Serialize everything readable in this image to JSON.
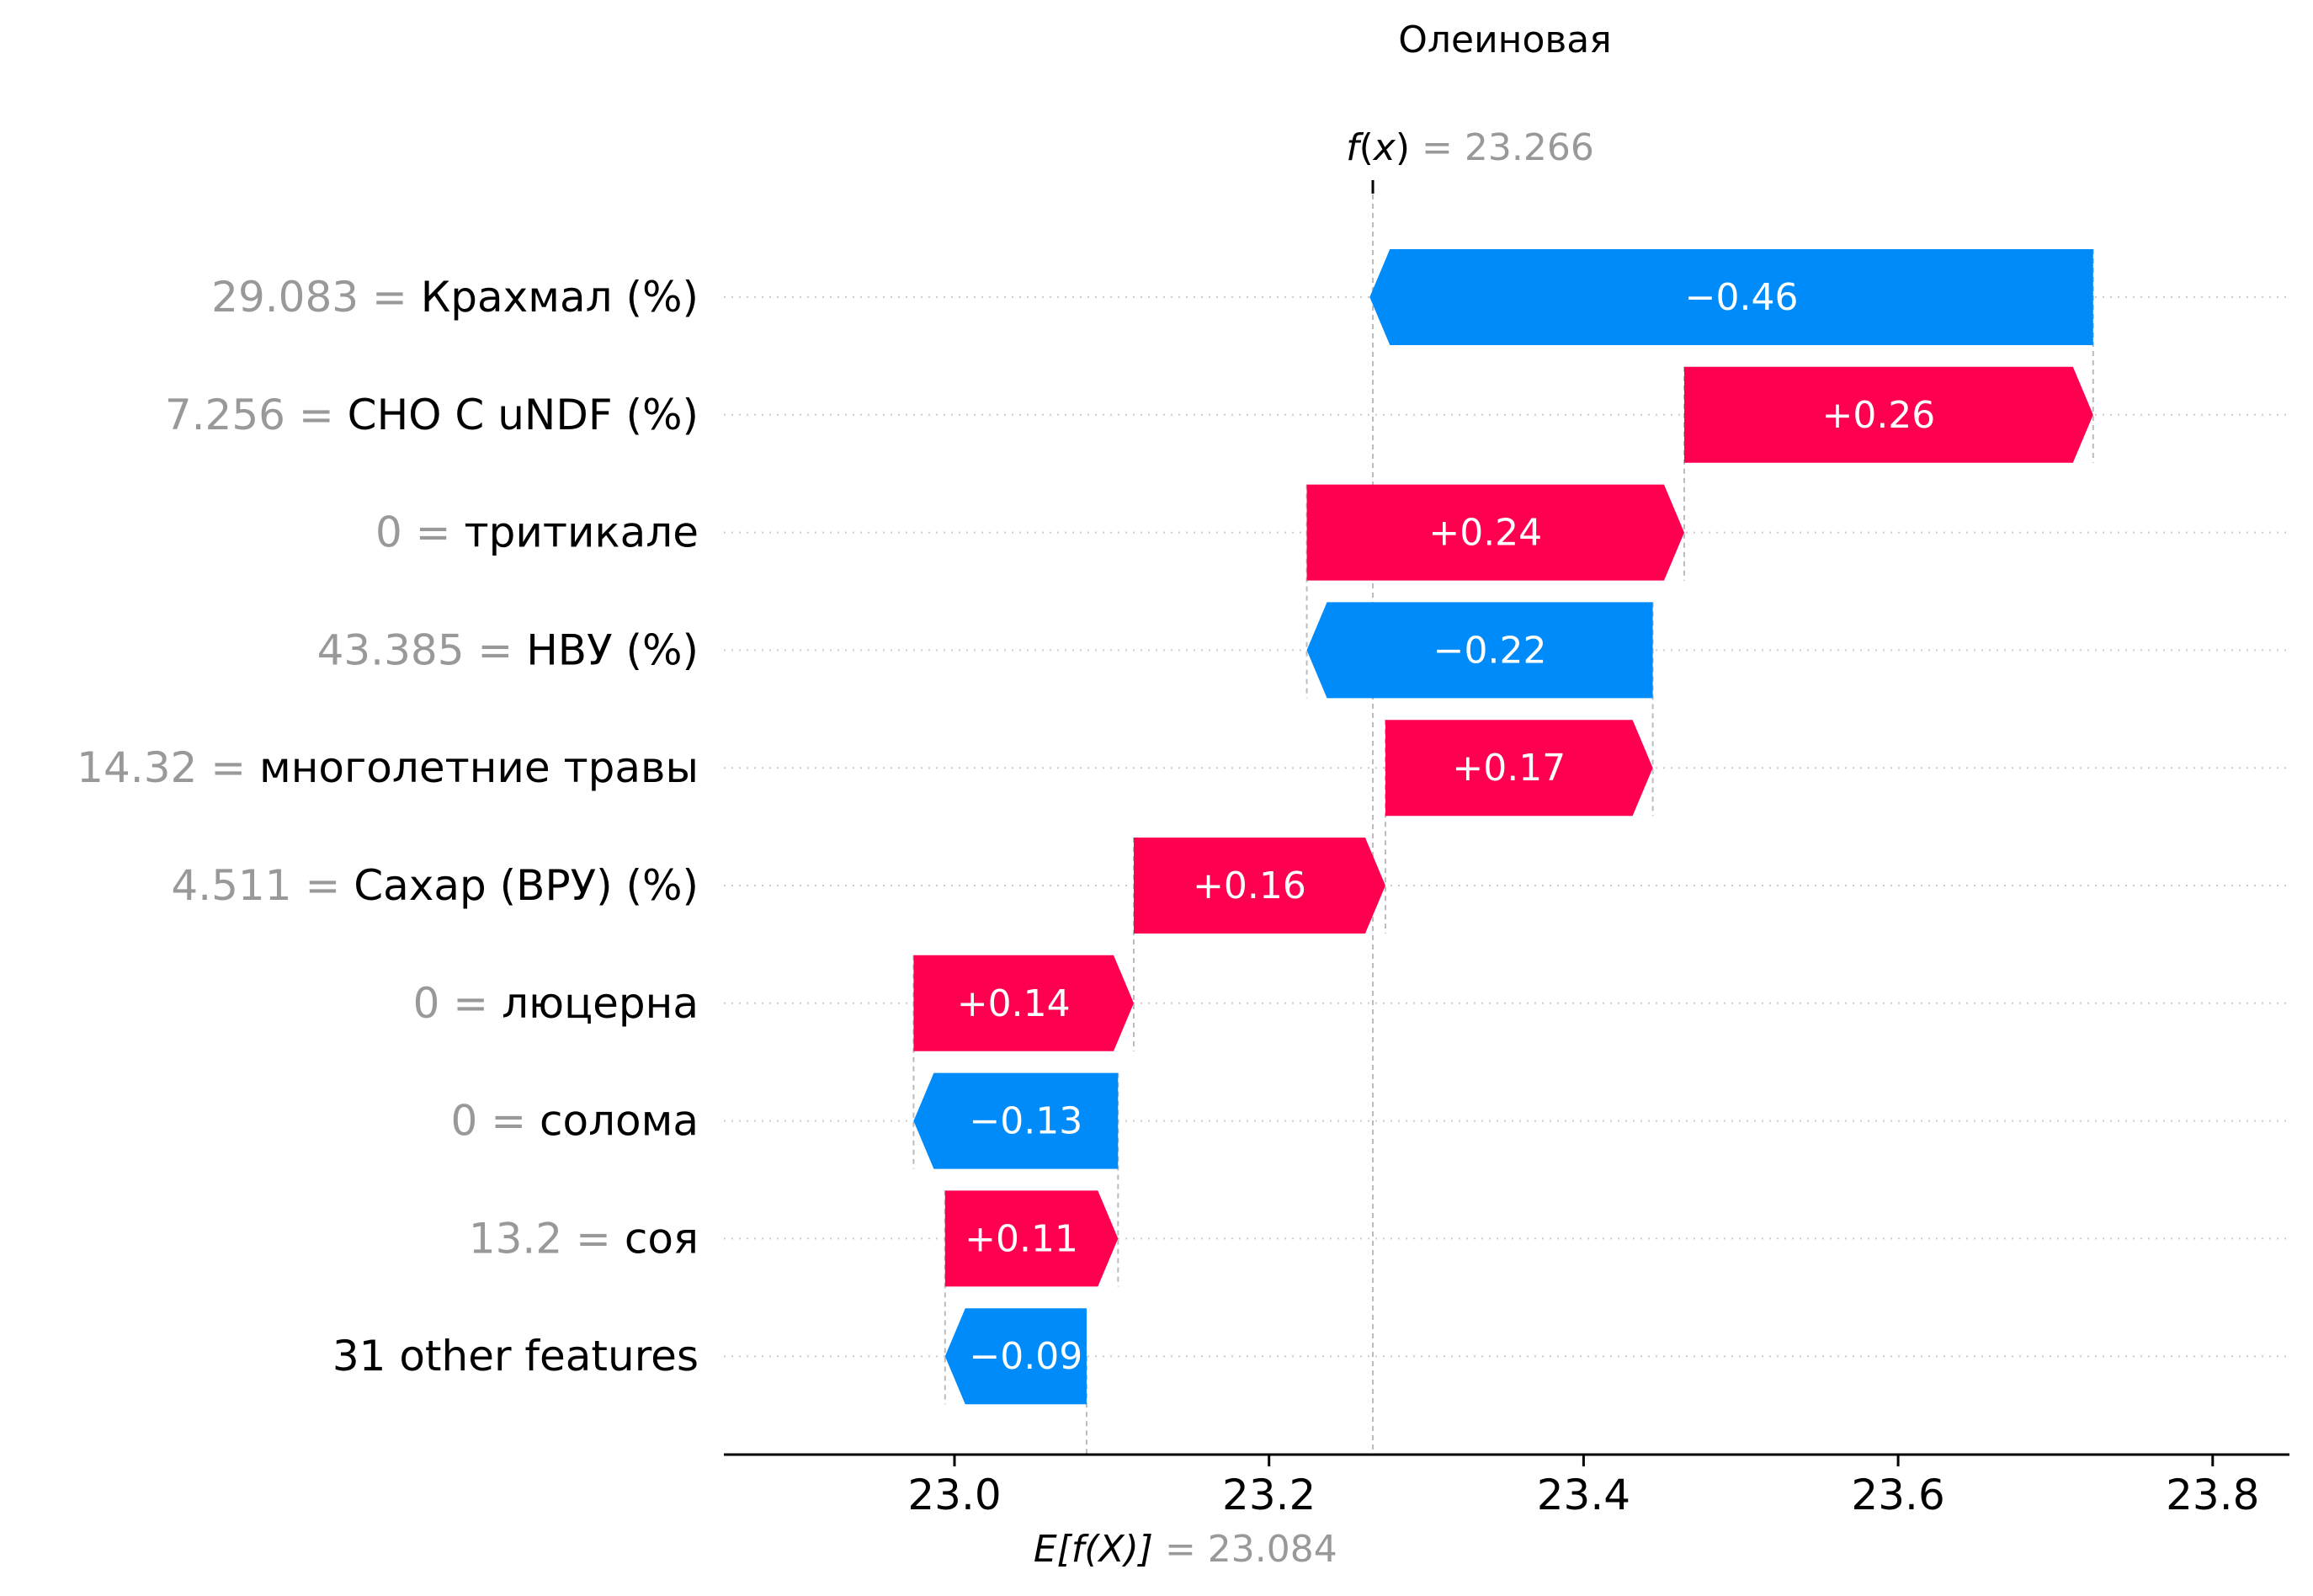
{
  "chart_data": {
    "type": "waterfall",
    "title": "Олеиновая",
    "fx": {
      "label_prefix": "f",
      "label_var": "x",
      "eq": " = ",
      "value": "23.266",
      "number": 23.266
    },
    "efx": {
      "label": "E[f(X)]",
      "eq": " = ",
      "value": "23.084",
      "number": 23.084
    },
    "xlim": [
      22.855,
      23.855
    ],
    "xticks": [
      "23.0",
      "23.2",
      "23.4",
      "23.6",
      "23.8"
    ],
    "xtick_values": [
      23.0,
      23.2,
      23.4,
      23.6,
      23.8
    ],
    "features": [
      {
        "value": "29.083",
        "name": "Крахмал (%)",
        "contribution": -0.46,
        "label": "−0.46"
      },
      {
        "value": "7.256",
        "name": "CHO C uNDF (%)",
        "contribution": 0.26,
        "label": "+0.26"
      },
      {
        "value": "0",
        "name": "тритикале",
        "contribution": 0.24,
        "label": "+0.24"
      },
      {
        "value": "43.385",
        "name": "НВУ (%)",
        "contribution": -0.22,
        "label": "−0.22"
      },
      {
        "value": "14.32",
        "name": "многолетние травы",
        "contribution": 0.17,
        "label": "+0.17"
      },
      {
        "value": "4.511",
        "name": "Сахар (ВРУ) (%)",
        "contribution": 0.16,
        "label": "+0.16"
      },
      {
        "value": "0",
        "name": "люцерна",
        "contribution": 0.14,
        "label": "+0.14"
      },
      {
        "value": "0",
        "name": "солома",
        "contribution": -0.13,
        "label": "−0.13"
      },
      {
        "value": "13.2",
        "name": "соя",
        "contribution": 0.11,
        "label": "+0.11"
      },
      {
        "value": "",
        "name": "31 other features",
        "contribution": -0.09,
        "label": "−0.09"
      }
    ],
    "colors": {
      "positive": "#ff0051",
      "negative": "#008bfb",
      "value_text": "#999999",
      "text": "#000000",
      "grid": "#cccccc"
    }
  }
}
